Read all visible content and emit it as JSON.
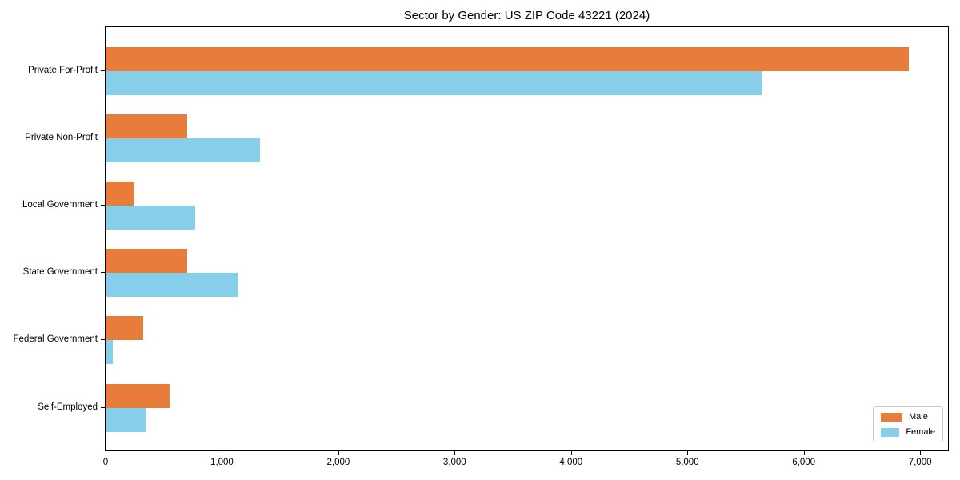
{
  "chart_data": {
    "type": "bar",
    "orientation": "horizontal",
    "title": "Sector by Gender: US ZIP Code 43221 (2024)",
    "categories": [
      "Private For-Profit",
      "Private Non-Profit",
      "Local Government",
      "State Government",
      "Federal Government",
      "Self-Employed"
    ],
    "series": [
      {
        "name": "Male",
        "color": "#E87D3B",
        "values": [
          6900,
          700,
          245,
          700,
          320,
          550
        ]
      },
      {
        "name": "Female",
        "color": "#87CEEB",
        "values": [
          5640,
          1325,
          770,
          1140,
          65,
          345
        ]
      }
    ],
    "x_axis": {
      "max": 7240,
      "ticks": [
        0,
        1000,
        2000,
        3000,
        4000,
        5000,
        6000,
        7000
      ],
      "tick_labels": [
        "0",
        "1,000",
        "2,000",
        "3,000",
        "4,000",
        "5,000",
        "6,000",
        "7,000"
      ]
    },
    "ylim_note": "categories top-to-bottom as listed",
    "grid": false,
    "legend": {
      "position": "lower right"
    }
  }
}
